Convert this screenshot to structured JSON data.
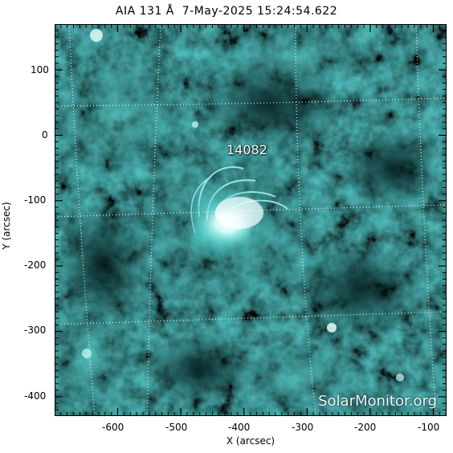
{
  "title": "AIA 131 Å  7-May-2025 15:24:54.622",
  "xlabel": "X (arcsec)",
  "ylabel": "Y (arcsec)",
  "x_ticks": [
    "-600",
    "-500",
    "-400",
    "-300",
    "-200",
    "-100"
  ],
  "y_ticks": [
    "100",
    "0",
    "-100",
    "-200",
    "-300",
    "-400"
  ],
  "region_label": "14082",
  "watermark": "SolarMonitor.org",
  "colors": {
    "background": "#ffffff",
    "frame": "#000000",
    "dark_teal": "#0a3636",
    "mid_teal": "#167c7c",
    "bright_cyan": "#7ff2ee",
    "grid": "#ffffff"
  }
}
